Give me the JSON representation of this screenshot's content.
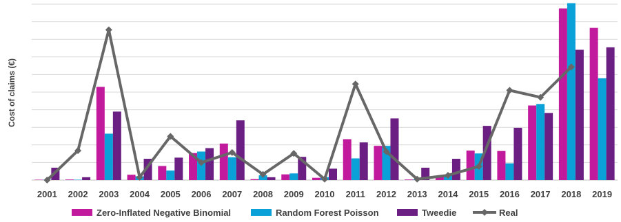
{
  "chart_data": {
    "type": "bar",
    "title": "",
    "xlabel": "",
    "ylabel": "Cost of claims (€)",
    "ylim": [
      0,
      9.25
    ],
    "y_tick_labels_shown": false,
    "grid": true,
    "legend_position": "bottom",
    "categories": [
      "2001",
      "2002",
      "2003",
      "2004",
      "2005",
      "2006",
      "2007",
      "2008",
      "2009",
      "2010",
      "2011",
      "2012",
      "2013",
      "2014",
      "2015",
      "2016",
      "2017",
      "2018",
      "2019"
    ],
    "series": [
      {
        "name": "Zero-Inflated Negative Binomial",
        "type": "bar",
        "color": "#c21a9c",
        "values": [
          0.02,
          0.03,
          4.9,
          0.28,
          0.74,
          1.42,
          1.92,
          0.05,
          0.3,
          0.12,
          2.15,
          1.8,
          0.03,
          0.2,
          1.55,
          1.53,
          3.92,
          9.02,
          8.0
        ]
      },
      {
        "name": "Random Forest Poisson",
        "type": "bar",
        "color": "#0aa0d8",
        "values": [
          0.02,
          0.02,
          2.44,
          0.2,
          0.5,
          1.5,
          1.2,
          0.25,
          0.35,
          0.15,
          1.14,
          1.8,
          0.03,
          0.27,
          1.4,
          0.88,
          4.0,
          9.3,
          5.35
        ]
      },
      {
        "name": "Tweedie",
        "type": "bar",
        "color": "#6b1f82",
        "values": [
          0.65,
          0.15,
          3.6,
          1.12,
          1.18,
          1.68,
          3.14,
          0.15,
          1.22,
          0.6,
          1.98,
          3.24,
          0.65,
          1.12,
          2.85,
          2.75,
          3.53,
          6.85,
          6.98
        ]
      },
      {
        "name": "Real",
        "type": "line",
        "color": "#676767",
        "values": [
          0.0,
          1.55,
          7.9,
          0.15,
          2.3,
          0.92,
          1.45,
          0.3,
          1.4,
          0.05,
          5.05,
          1.5,
          0.05,
          0.25,
          0.72,
          4.72,
          4.35,
          5.95,
          null
        ]
      }
    ]
  }
}
